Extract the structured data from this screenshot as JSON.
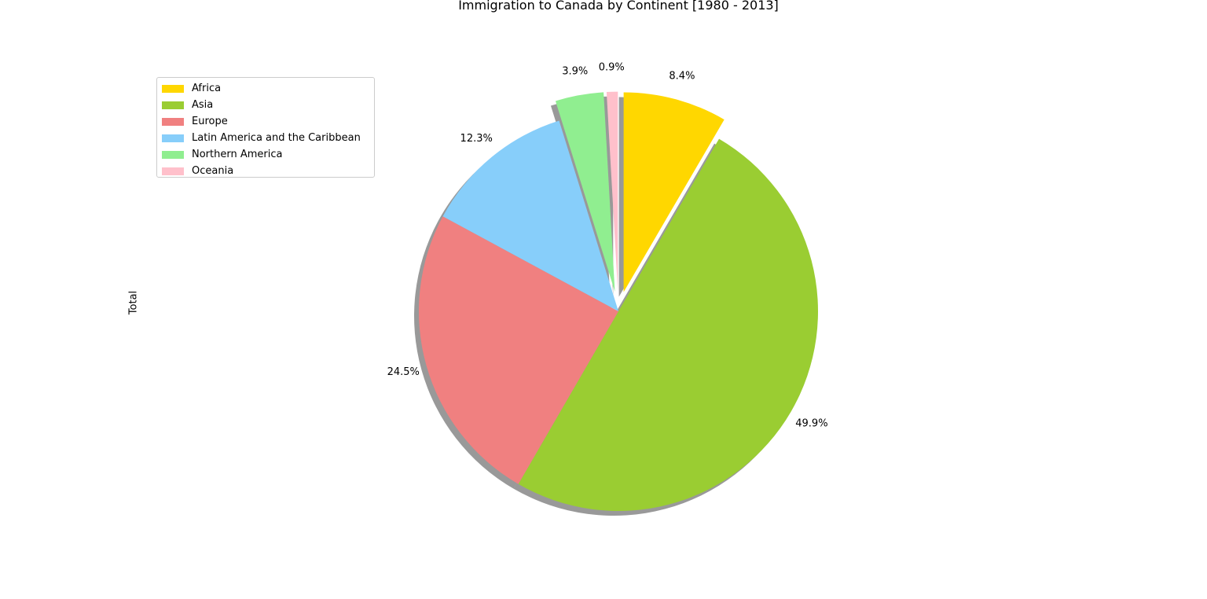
{
  "chart_data": {
    "type": "pie",
    "title": "Immigration to Canada by Continent [1980 - 2013]",
    "ylabel": "Total",
    "legend_position": "upper-left",
    "shadow": true,
    "start_angle_deg": 90,
    "direction": "clockwise",
    "slices": [
      {
        "label": "Africa",
        "percent": 8.4,
        "percent_label": "8.4%",
        "color": "#FFD700",
        "exploded": true
      },
      {
        "label": "Asia",
        "percent": 49.9,
        "percent_label": "49.9%",
        "color": "#9ACD32",
        "exploded": false
      },
      {
        "label": "Europe",
        "percent": 24.5,
        "percent_label": "24.5%",
        "color": "#F08080",
        "exploded": false
      },
      {
        "label": "Latin America and the Caribbean",
        "percent": 12.3,
        "percent_label": "12.3%",
        "color": "#87CEFA",
        "exploded": false
      },
      {
        "label": "Northern America",
        "percent": 3.9,
        "percent_label": "3.9%",
        "color": "#90EE90",
        "exploded": true
      },
      {
        "label": "Oceania",
        "percent": 0.9,
        "percent_label": "0.9%",
        "color": "#FFC0CB",
        "exploded": true
      }
    ]
  }
}
